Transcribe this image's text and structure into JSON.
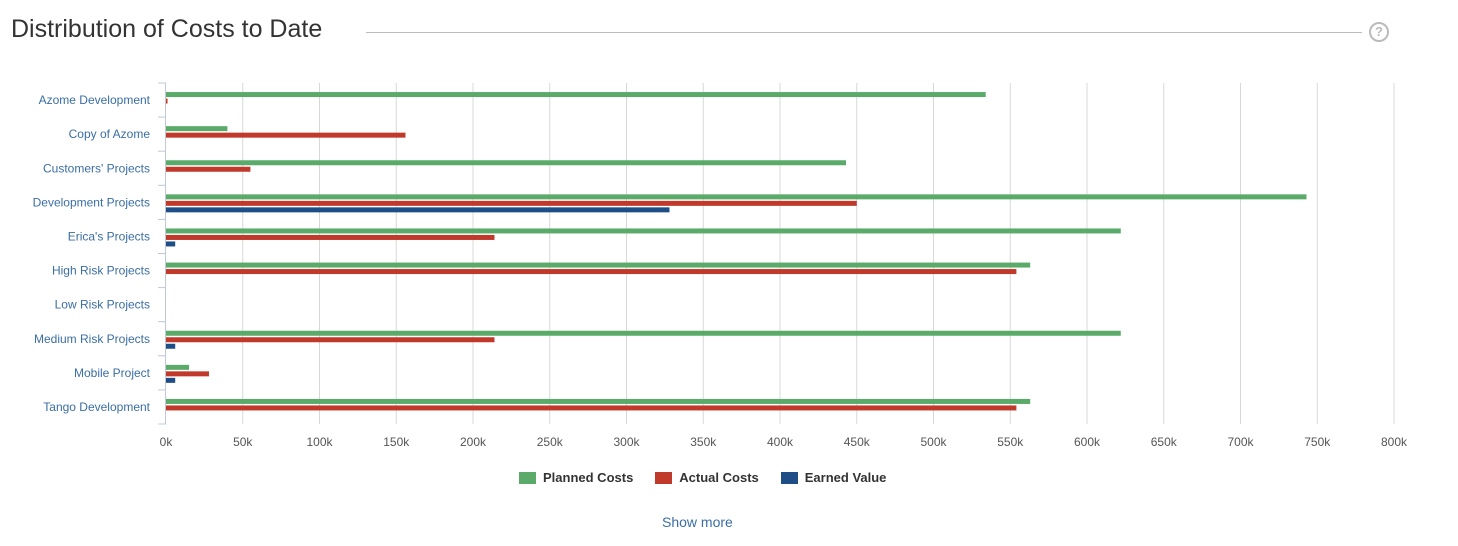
{
  "header": {
    "title": "Distribution of Costs to Date",
    "help_icon": "question-circle-icon"
  },
  "show_more": "Show more",
  "chart_data": {
    "type": "bar",
    "orientation": "horizontal",
    "title": "Distribution of Costs to Date",
    "categories": [
      "Azome Development",
      "Copy of Azome",
      "Customers' Projects",
      "Development Projects",
      "Erica's Projects",
      "High Risk Projects",
      "Low Risk Projects",
      "Medium Risk Projects",
      "Mobile Project",
      "Tango Development"
    ],
    "series": [
      {
        "name": "Planned Costs",
        "color": "#5aab6a",
        "values": [
          534,
          40,
          443,
          743,
          622,
          563,
          0,
          622,
          15,
          563
        ]
      },
      {
        "name": "Actual Costs",
        "color": "#c0392b",
        "values": [
          1,
          156,
          55,
          450,
          214,
          554,
          0,
          214,
          28,
          554
        ]
      },
      {
        "name": "Earned Value",
        "color": "#1f4e86",
        "values": [
          0,
          0,
          0,
          328,
          6,
          0,
          0,
          6,
          6,
          0
        ]
      }
    ],
    "xlim": [
      0,
      800
    ],
    "xticks": [
      "0k",
      "50k",
      "100k",
      "150k",
      "200k",
      "250k",
      "300k",
      "350k",
      "400k",
      "450k",
      "500k",
      "550k",
      "600k",
      "650k",
      "700k",
      "750k",
      "800k"
    ],
    "grid": true,
    "legend": "bottom-center",
    "units": "thousands"
  }
}
